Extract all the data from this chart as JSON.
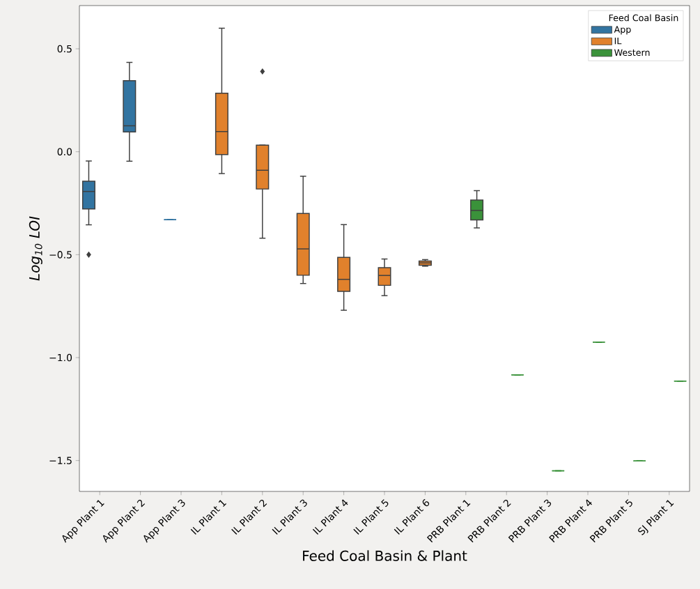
{
  "chart_data": {
    "type": "box",
    "xlabel": "Feed Coal Basin & Plant",
    "ylabel": "Log$_{10}$ LOI",
    "legend_title": "Feed Coal Basin",
    "legend": "top right",
    "categories": [
      "App Plant 1",
      "App Plant 2",
      "App Plant 3",
      "IL Plant 1",
      "IL Plant 2",
      "IL Plant 3",
      "IL Plant 4",
      "IL Plant 5",
      "IL Plant 6",
      "PRB Plant 1",
      "PRB Plant 2",
      "PRB Plant 3",
      "PRB Plant 4",
      "PRB Plant 5",
      "SJ Plant 1"
    ],
    "ylim": [
      -1.65,
      0.71
    ],
    "yticks": [
      {
        "value": -1.5,
        "label": "−1.5"
      },
      {
        "value": -1.0,
        "label": "−1.0"
      },
      {
        "value": -0.5,
        "label": "−0.5"
      },
      {
        "value": 0.0,
        "label": "0.0"
      },
      {
        "value": 0.5,
        "label": "0.5"
      }
    ],
    "series": [
      {
        "name": "App",
        "color": "#3274a1",
        "boxes": [
          {
            "low": -0.355,
            "q1": -0.278,
            "median": -0.193,
            "q3": -0.143,
            "high": -0.045,
            "outliers": [
              -0.5
            ]
          },
          {
            "low": -0.046,
            "q1": 0.096,
            "median": 0.126,
            "q3": 0.345,
            "high": 0.434
          },
          {
            "low": -0.33,
            "q1": -0.33,
            "median": -0.33,
            "q3": -0.33,
            "high": -0.33
          },
          null,
          null,
          null,
          null,
          null,
          null,
          null,
          null,
          null,
          null,
          null,
          null
        ]
      },
      {
        "name": "IL",
        "color": "#e1812c",
        "boxes": [
          null,
          null,
          null,
          {
            "low": -0.106,
            "q1": -0.014,
            "median": 0.098,
            "q3": 0.284,
            "high": 0.6
          },
          {
            "low": -0.42,
            "q1": -0.181,
            "median": -0.09,
            "q3": 0.032,
            "high": 0.032,
            "outliers": [
              0.39
            ]
          },
          {
            "low": -0.64,
            "q1": -0.6,
            "median": -0.472,
            "q3": -0.3,
            "high": -0.119
          },
          {
            "low": -0.77,
            "q1": -0.678,
            "median": -0.62,
            "q3": -0.513,
            "high": -0.354
          },
          {
            "low": -0.699,
            "q1": -0.649,
            "median": -0.601,
            "q3": -0.563,
            "high": -0.521
          },
          {
            "low": -0.556,
            "q1": -0.551,
            "median": -0.54,
            "q3": -0.531,
            "high": -0.524
          },
          null,
          null,
          null,
          null,
          null,
          null
        ]
      },
      {
        "name": "Western",
        "color": "#3a923a",
        "boxes": [
          null,
          null,
          null,
          null,
          null,
          null,
          null,
          null,
          null,
          {
            "low": -0.37,
            "q1": -0.331,
            "median": -0.285,
            "q3": -0.235,
            "high": -0.189
          },
          {
            "low": -1.084,
            "q1": -1.084,
            "median": -1.084,
            "q3": -1.084,
            "high": -1.084
          },
          {
            "low": -1.55,
            "q1": -1.55,
            "median": -1.55,
            "q3": -1.55,
            "high": -1.55
          },
          {
            "low": -0.925,
            "q1": -0.925,
            "median": -0.925,
            "q3": -0.925,
            "high": -0.925
          },
          {
            "low": -1.502,
            "q1": -1.502,
            "median": -1.502,
            "q3": -1.502,
            "high": -1.502
          },
          {
            "low": -1.114,
            "q1": -1.114,
            "median": -1.114,
            "q3": -1.114,
            "high": -1.114
          }
        ]
      }
    ]
  }
}
